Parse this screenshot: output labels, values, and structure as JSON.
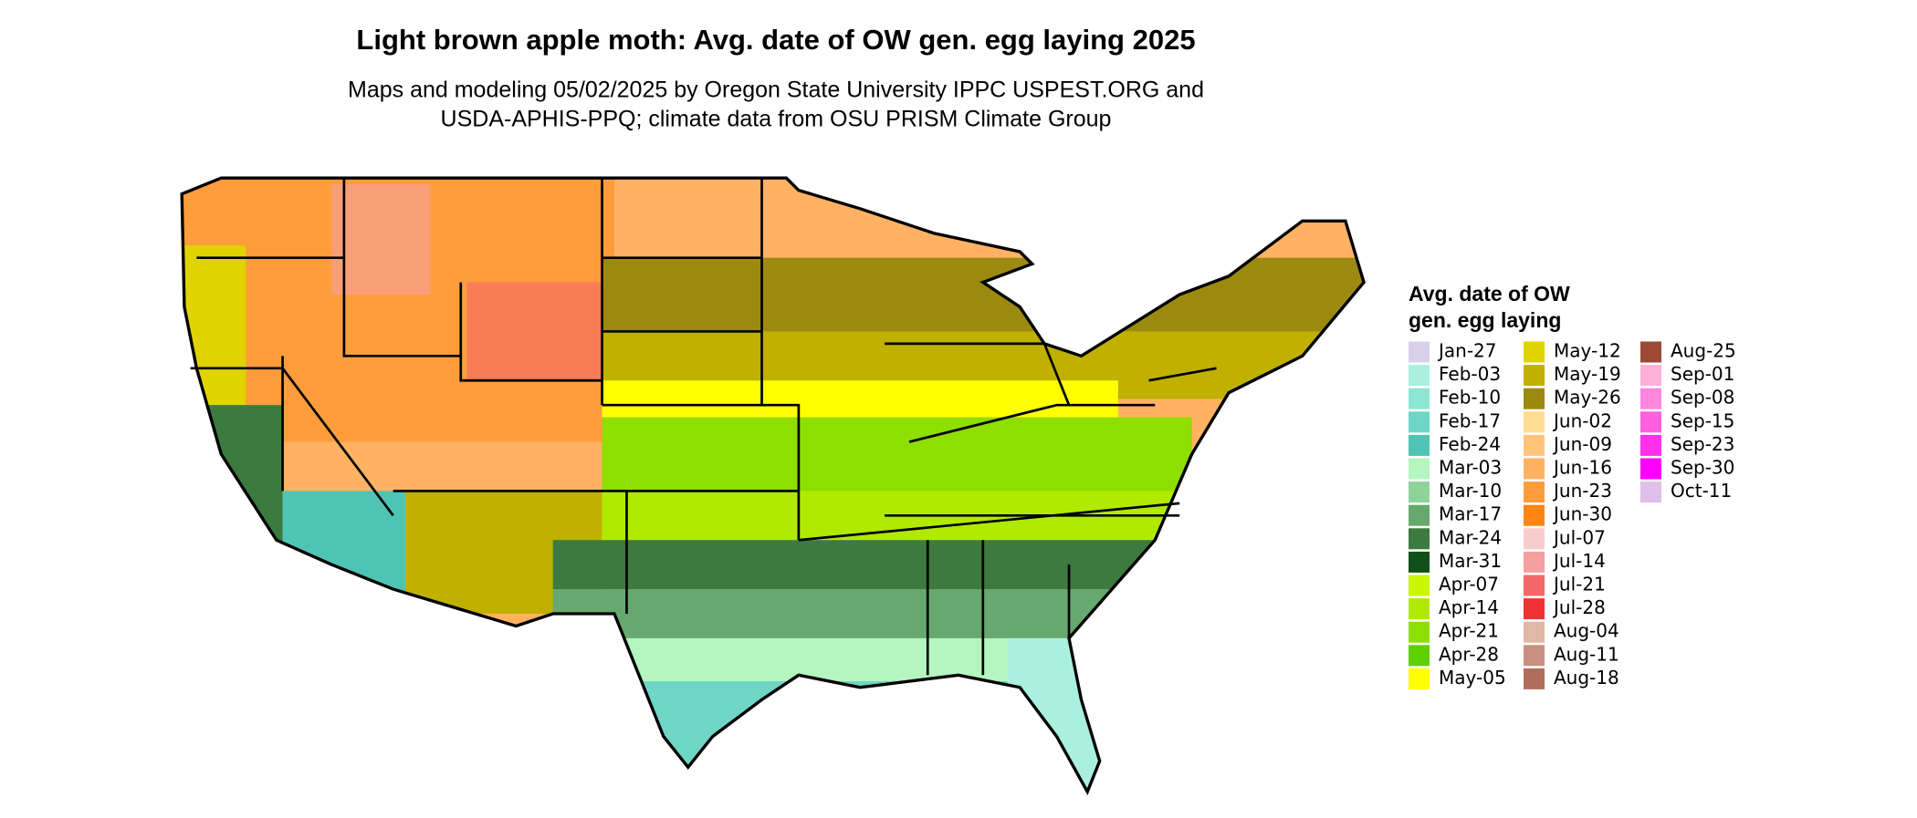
{
  "header": {
    "title": "Light brown apple moth: Avg. date of OW gen. egg laying 2025",
    "subtitle": [
      "Maps and modeling 05/02/2025 by Oregon State University IPPC USPEST.ORG and",
      "USDA-APHIS-PPQ; climate data from OSU PRISM Climate Group"
    ]
  },
  "legend": {
    "title": [
      "Avg. date of OW",
      "gen. egg laying"
    ],
    "items": [
      {
        "label": "Jan-27",
        "color": "#d9d0ec"
      },
      {
        "label": "Feb-03",
        "color": "#a9f0df"
      },
      {
        "label": "Feb-10",
        "color": "#8de6d3"
      },
      {
        "label": "Feb-17",
        "color": "#6fd6c6"
      },
      {
        "label": "Feb-24",
        "color": "#4fc4b4"
      },
      {
        "label": "Mar-03",
        "color": "#b5f5c0"
      },
      {
        "label": "Mar-10",
        "color": "#8fd39b"
      },
      {
        "label": "Mar-17",
        "color": "#66a86d"
      },
      {
        "label": "Mar-24",
        "color": "#3c7a3f"
      },
      {
        "label": "Mar-31",
        "color": "#10501a"
      },
      {
        "label": "Apr-07",
        "color": "#ccf500"
      },
      {
        "label": "Apr-14",
        "color": "#b0ea00"
      },
      {
        "label": "Apr-21",
        "color": "#8ede00"
      },
      {
        "label": "Apr-28",
        "color": "#5fd000"
      },
      {
        "label": "May-05",
        "color": "#ffff00"
      },
      {
        "label": "May-12",
        "color": "#e0d400"
      },
      {
        "label": "May-19",
        "color": "#c0b000"
      },
      {
        "label": "May-26",
        "color": "#9c8a10"
      },
      {
        "label": "Jun-02",
        "color": "#ffdc94"
      },
      {
        "label": "Jun-09",
        "color": "#ffc47a"
      },
      {
        "label": "Jun-16",
        "color": "#ffb262"
      },
      {
        "label": "Jun-23",
        "color": "#ff9d3c"
      },
      {
        "label": "Jun-30",
        "color": "#ff8614"
      },
      {
        "label": "Jul-07",
        "color": "#f7cccc"
      },
      {
        "label": "Jul-14",
        "color": "#f4a0a0"
      },
      {
        "label": "Jul-21",
        "color": "#f26868"
      },
      {
        "label": "Jul-28",
        "color": "#f03232"
      },
      {
        "label": "Aug-04",
        "color": "#e0b8a8"
      },
      {
        "label": "Aug-11",
        "color": "#c89080"
      },
      {
        "label": "Aug-18",
        "color": "#b06c5c"
      },
      {
        "label": "Aug-25",
        "color": "#9c4a36"
      },
      {
        "label": "Sep-01",
        "color": "#ffb0d8"
      },
      {
        "label": "Sep-08",
        "color": "#ff86dc"
      },
      {
        "label": "Sep-15",
        "color": "#ff60e0"
      },
      {
        "label": "Sep-23",
        "color": "#ff30ec"
      },
      {
        "label": "Sep-30",
        "color": "#ff00ff"
      },
      {
        "label": "Oct-11",
        "color": "#e0c0e8"
      }
    ]
  }
}
